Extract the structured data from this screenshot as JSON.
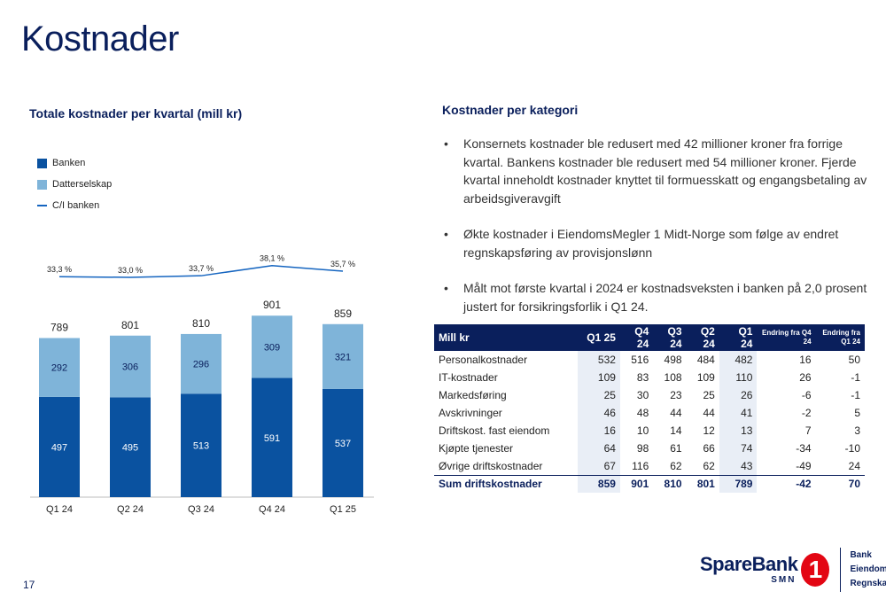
{
  "page_title": "Kostnader",
  "page_number": "17",
  "left": {
    "chart_title": "Totale kostnader per kvartal (mill kr)",
    "legend": {
      "banken": "Banken",
      "datterselskap": "Datterselskap",
      "ci": "C/I banken"
    }
  },
  "right": {
    "title": "Kostnader per kategori",
    "bullets": [
      "Konsernets kostnader ble redusert med 42 millioner kroner fra forrige kvartal. Bankens kostnader ble redusert med 54 millioner kroner. Fjerde kvartal inneholdt kostnader knyttet til formuesskatt og engangsbetaling av arbeidsgiveravgift",
      "Økte kostnader i EiendomsMegler 1 Midt-Norge som følge av endret regnskapsføring av provisjonslønn",
      "Målt mot første kvartal i 2024 er kostnadsveksten i banken på 2,0 prosent justert for forsikringsforlik i Q1 24."
    ]
  },
  "table": {
    "headers": [
      "Mill kr",
      "Q1 25",
      "Q4 24",
      "Q3 24",
      "Q2 24",
      "Q1 24",
      "Endring fra Q4 24",
      "Endring fra Q1 24"
    ],
    "rows": [
      [
        "Personalkostnader",
        "532",
        "516",
        "498",
        "484",
        "482",
        "16",
        "50"
      ],
      [
        "IT-kostnader",
        "109",
        "83",
        "108",
        "109",
        "110",
        "26",
        "-1"
      ],
      [
        "Markedsføring",
        "25",
        "30",
        "23",
        "25",
        "26",
        "-6",
        "-1"
      ],
      [
        "Avskrivninger",
        "46",
        "48",
        "44",
        "44",
        "41",
        "-2",
        "5"
      ],
      [
        "Driftskost. fast eiendom",
        "16",
        "10",
        "14",
        "12",
        "13",
        "7",
        "3"
      ],
      [
        "Kjøpte tjenester",
        "64",
        "98",
        "61",
        "66",
        "74",
        "-34",
        "-10"
      ],
      [
        "Øvrige driftskostnader",
        "67",
        "116",
        "62",
        "62",
        "43",
        "-49",
        "24"
      ]
    ],
    "sum": [
      "Sum driftskostnader",
      "859",
      "901",
      "810",
      "801",
      "789",
      "-42",
      "70"
    ]
  },
  "logo": {
    "brand": "SpareBank",
    "sub": "SMN",
    "numeral": "1",
    "lines": [
      "Bank",
      "Eiendom",
      "Regnskap"
    ]
  },
  "colors": {
    "banken": "#0a52a0",
    "datterselskap": "#7fb4d9",
    "ci_line": "#1565c0",
    "navy": "#0a1f5c",
    "logo_red": "#e30613"
  },
  "chart_data": {
    "type": "bar",
    "stacked": true,
    "title": "Totale kostnader per kvartal (mill kr)",
    "categories": [
      "Q1 24",
      "Q2 24",
      "Q3 24",
      "Q4 24",
      "Q1 25"
    ],
    "series": [
      {
        "name": "Banken",
        "values": [
          497,
          495,
          513,
          591,
          537
        ]
      },
      {
        "name": "Datterselskap",
        "values": [
          292,
          306,
          296,
          309,
          321
        ]
      }
    ],
    "totals": [
      789,
      801,
      810,
      901,
      859
    ],
    "line_series": {
      "name": "C/I banken",
      "values": [
        33.3,
        33.0,
        33.7,
        38.1,
        35.7
      ],
      "labels": [
        "33,3 %",
        "33,0 %",
        "33,7 %",
        "38,1 %",
        "35,7 %"
      ]
    },
    "ylim": [
      0,
      960
    ],
    "legend_position": "top-left",
    "grid": false
  }
}
